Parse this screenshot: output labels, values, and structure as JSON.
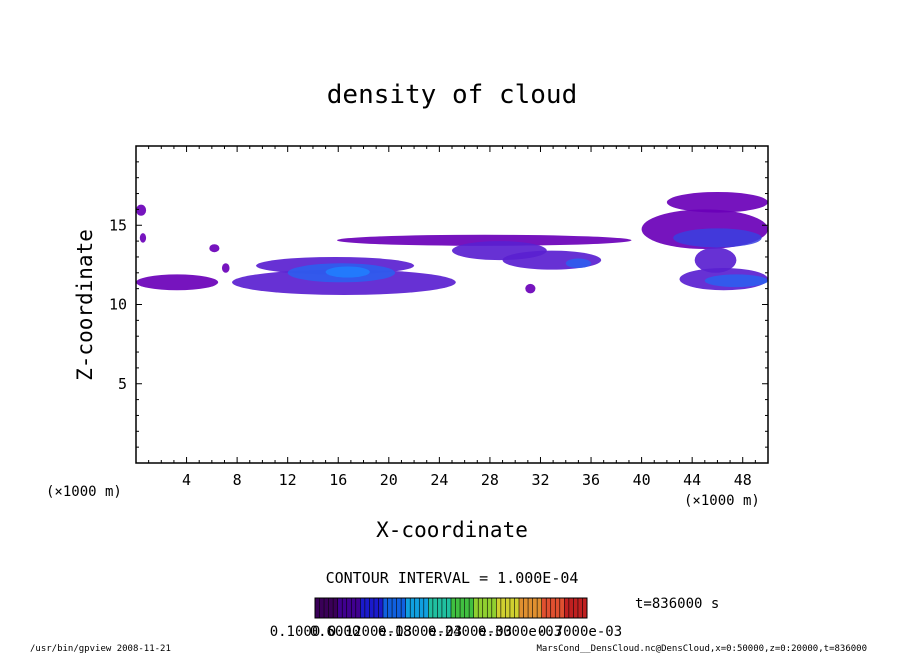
{
  "chart_data": {
    "type": "heatmap",
    "title": "density of cloud",
    "xlabel": "X-coordinate",
    "ylabel": "Z-coordinate",
    "x_unit": "(×1000 m)",
    "xlim": [
      0,
      50
    ],
    "ylim": [
      0,
      20
    ],
    "x_ticks": [
      "4",
      "8",
      "12",
      "16",
      "20",
      "24",
      "28",
      "32",
      "36",
      "40",
      "44",
      "48"
    ],
    "y_ticks": [
      "5",
      "10",
      "15"
    ],
    "contour_interval_label": "CONTOUR INTERVAL = 1.000E-04",
    "time_label": "t=836000 s",
    "colorbar_labels": [
      "0.1000",
      "0.6000",
      "0.1200e-03",
      "0.1800e-03",
      "0.2400e-03",
      "0.3000e-03",
      "0.7000e-03"
    ],
    "colorbar_colors": [
      "#3a0058",
      "#400090",
      "#1a1acc",
      "#1060e0",
      "#10a0e0",
      "#20c0a0",
      "#40c040",
      "#90d030",
      "#d0d030",
      "#e09030",
      "#e05030",
      "#c02020"
    ],
    "footer_left": "/usr/bin/gpview   2008-11-21",
    "footer_right": "MarsCond__DensCloud.nc@DensCloud,x=0:50000,z=0:20000,t=836000",
    "cloud_regions": [
      {
        "x": [
          0.0,
          0.8
        ],
        "z": [
          15.6,
          16.3
        ],
        "level": 1
      },
      {
        "x": [
          0.3,
          0.8
        ],
        "z": [
          13.9,
          14.5
        ],
        "level": 1
      },
      {
        "x": [
          0.0,
          6.5
        ],
        "z": [
          10.9,
          11.9
        ],
        "level": 1
      },
      {
        "x": [
          5.8,
          6.6
        ],
        "z": [
          13.3,
          13.8
        ],
        "level": 1
      },
      {
        "x": [
          6.8,
          7.4
        ],
        "z": [
          12.0,
          12.6
        ],
        "level": 1
      },
      {
        "x": [
          7.6,
          25.3
        ],
        "z": [
          10.6,
          12.2
        ],
        "level": 2
      },
      {
        "x": [
          9.5,
          22.0
        ],
        "z": [
          11.9,
          13.0
        ],
        "level": 2
      },
      {
        "x": [
          12.0,
          20.5
        ],
        "z": [
          11.4,
          12.6
        ],
        "level": 4
      },
      {
        "x": [
          15.0,
          18.5
        ],
        "z": [
          11.7,
          12.4
        ],
        "level": 5
      },
      {
        "x": [
          15.9,
          39.2
        ],
        "z": [
          13.7,
          14.4
        ],
        "level": 1
      },
      {
        "x": [
          25.0,
          32.5
        ],
        "z": [
          12.8,
          14.0
        ],
        "level": 2
      },
      {
        "x": [
          29.0,
          36.8
        ],
        "z": [
          12.2,
          13.4
        ],
        "level": 2
      },
      {
        "x": [
          34.0,
          36.0
        ],
        "z": [
          12.3,
          12.9
        ],
        "level": 4
      },
      {
        "x": [
          30.8,
          31.6
        ],
        "z": [
          10.7,
          11.3
        ],
        "level": 1
      },
      {
        "x": [
          40.0,
          50.0
        ],
        "z": [
          13.5,
          16.0
        ],
        "level": 1
      },
      {
        "x": [
          42.0,
          50.0
        ],
        "z": [
          15.8,
          17.1
        ],
        "level": 1
      },
      {
        "x": [
          42.5,
          49.5
        ],
        "z": [
          13.6,
          14.8
        ],
        "level": 3
      },
      {
        "x": [
          44.2,
          47.5
        ],
        "z": [
          12.0,
          13.6
        ],
        "level": 2
      },
      {
        "x": [
          43.0,
          50.0
        ],
        "z": [
          10.9,
          12.3
        ],
        "level": 2
      },
      {
        "x": [
          45.0,
          50.0
        ],
        "z": [
          11.1,
          11.9
        ],
        "level": 4
      }
    ]
  }
}
